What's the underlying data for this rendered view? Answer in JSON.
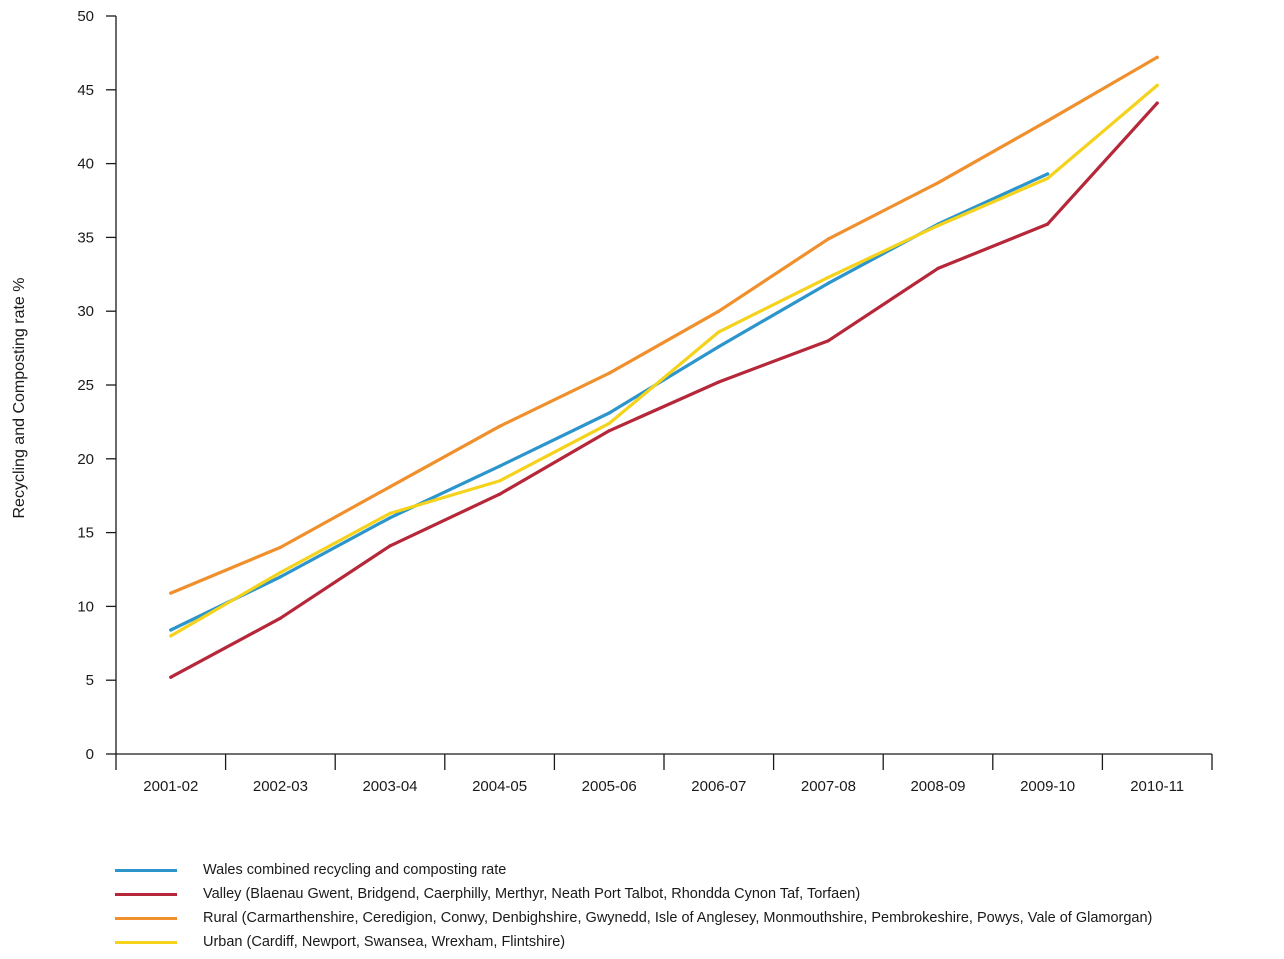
{
  "chart_data": {
    "type": "line",
    "title": "",
    "ylabel": "Recycling and Composting rate %",
    "xlabel": "",
    "ylim": [
      0,
      50
    ],
    "yticks": [
      0,
      5,
      10,
      15,
      20,
      25,
      30,
      35,
      40,
      45,
      50
    ],
    "grid": false,
    "legend_position": "bottom",
    "categories": [
      "2001-02",
      "2002-03",
      "2003-04",
      "2004-05",
      "2005-06",
      "2006-07",
      "2007-08",
      "2008-09",
      "2009-10",
      "2010-11"
    ],
    "series": [
      {
        "name": "Wales combined recycling and composting rate",
        "color": "#2b95cc",
        "values": [
          8.4,
          12.0,
          16.0,
          19.5,
          23.1,
          27.6,
          31.9,
          35.9,
          39.3,
          null
        ]
      },
      {
        "name": "Valley (Blaenau Gwent, Bridgend, Caerphilly, Merthyr, Neath Port Talbot, Rhondda Cynon Taf, Torfaen)",
        "color": "#b52739",
        "values": [
          5.2,
          9.2,
          14.1,
          17.6,
          21.9,
          25.2,
          28.0,
          32.9,
          35.9,
          44.1
        ]
      },
      {
        "name": "Rural (Carmarthenshire, Ceredigion, Conwy, Denbighshire, Gwynedd, Isle of Anglesey, Monmouthshire, Pembrokeshire, Powys, Vale of Glamorgan)",
        "color": "#f0902d",
        "values": [
          10.9,
          14.0,
          18.1,
          22.2,
          25.8,
          30.0,
          34.9,
          38.7,
          42.9,
          47.2
        ]
      },
      {
        "name": "Urban (Cardiff, Newport, Swansea, Wrexham, Flintshire)",
        "color": "#f5d21c",
        "values": [
          8.0,
          12.3,
          16.3,
          18.5,
          22.4,
          28.6,
          32.3,
          35.8,
          39.0,
          45.3
        ]
      }
    ]
  }
}
